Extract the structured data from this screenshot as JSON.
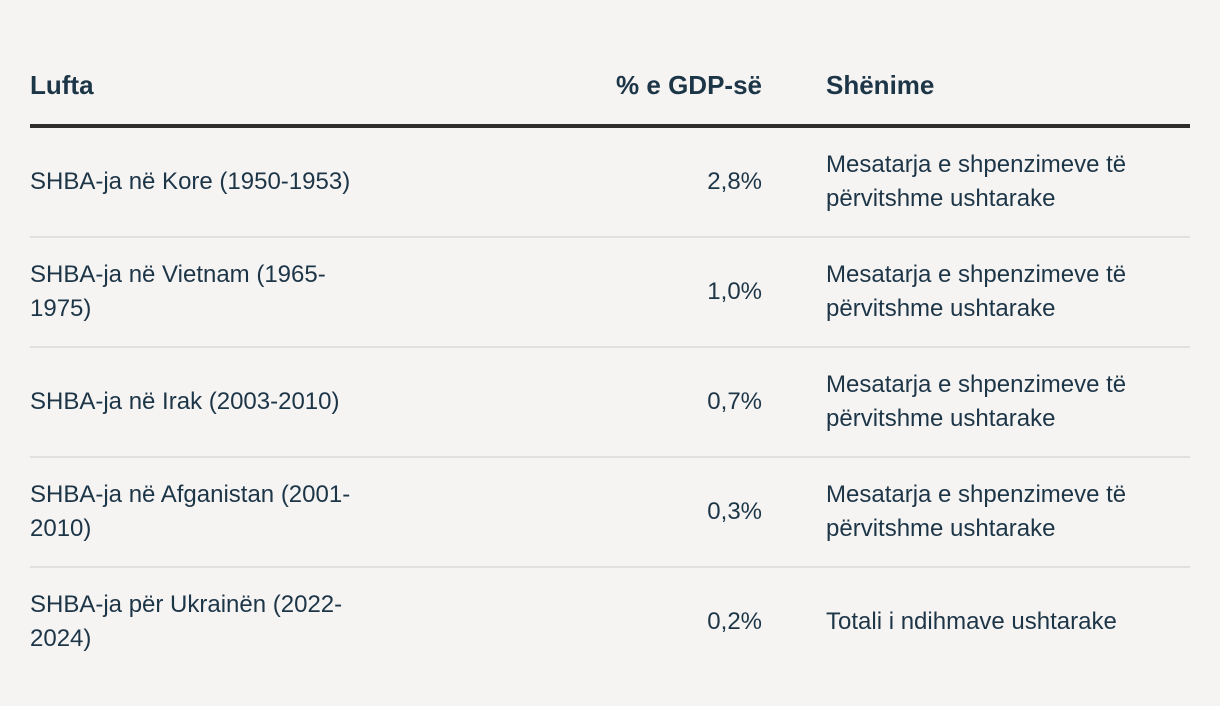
{
  "table": {
    "headers": {
      "war": "Lufta",
      "gdp": "% e GDP-së",
      "notes": "Shënime"
    },
    "rows": [
      {
        "war": "SHBA-ja në Kore (1950-1953)",
        "gdp": "2,8%",
        "notes": "Mesatarja e shpenzimeve të përvitshme ushtarake"
      },
      {
        "war": "SHBA-ja në Vietnam (1965-1975)",
        "gdp": "1,0%",
        "notes": "Mesatarja e shpenzimeve të përvitshme ushtarake"
      },
      {
        "war": "SHBA-ja në Irak (2003-2010)",
        "gdp": "0,7%",
        "notes": "Mesatarja e shpenzimeve të përvitshme ushtarake"
      },
      {
        "war": "SHBA-ja në Afganistan (2001-2010)",
        "gdp": "0,3%",
        "notes": "Mesatarja e shpenzimeve të përvitshme ushtarake"
      },
      {
        "war": "SHBA-ja për Ukrainën (2022-2024)",
        "gdp": "0,2%",
        "notes": "Totali i ndihmave ushtarake"
      }
    ]
  }
}
